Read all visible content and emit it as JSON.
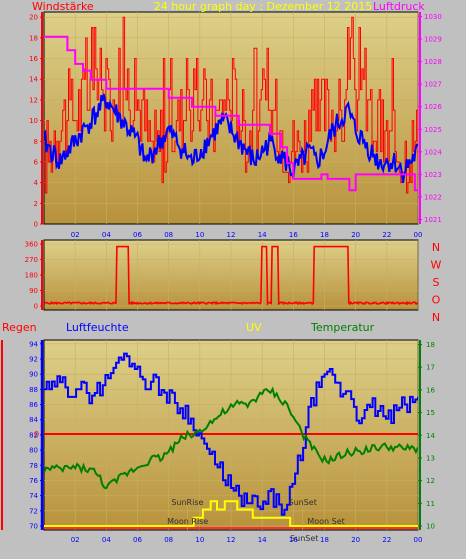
{
  "colors": {
    "wind": "#ff0000",
    "wind_avg": "#0000ff",
    "pressure": "#ff00ff",
    "rain": "#ff0000",
    "humidity": "#0000ff",
    "uv": "#ffff00",
    "temperature": "#008000",
    "plot_bg_top": "#ddd08a",
    "plot_bg_bottom": "#b8923c"
  },
  "chart_data": [
    {
      "type": "line",
      "title": "24 hour graph day : Dezember 12 2015",
      "left_axis_label": "Windstärke",
      "right_axis_label": "Luftdruck",
      "x_tick_labels": [
        "02",
        "04",
        "06",
        "08",
        "10",
        "12",
        "14",
        "16",
        "18",
        "20",
        "22",
        "00"
      ],
      "y_left_ticks": [
        "0",
        "2",
        "4",
        "6",
        "8",
        "10",
        "12",
        "14",
        "16",
        "18",
        "20"
      ],
      "y_right_ticks": [
        "1021",
        "1022",
        "1023",
        "1024",
        "1025",
        "1026",
        "1027",
        "1028",
        "1029",
        "1030"
      ],
      "ylim_left": [
        0,
        20.5
      ],
      "ylim_right": [
        1020.8,
        1030.2
      ],
      "xlim": [
        0,
        24
      ],
      "series": [
        {
          "axis": "left",
          "style": "gust",
          "x": [
            0,
            1,
            2,
            3,
            4,
            5,
            6,
            7,
            8,
            9,
            10,
            11,
            12,
            13,
            14,
            15,
            16,
            17,
            18,
            19,
            20,
            21,
            22,
            23,
            24
          ],
          "values": [
            8,
            12,
            13,
            15,
            13,
            16,
            14,
            9,
            11,
            13,
            14,
            12,
            15,
            11,
            13,
            12,
            9,
            11,
            13,
            12,
            15,
            12,
            10,
            9,
            10
          ]
        },
        {
          "axis": "left",
          "style": "average",
          "x": [
            0,
            1,
            1.5,
            2,
            2.5,
            3,
            3.5,
            4,
            4.5,
            5,
            5.5,
            6,
            6.5,
            7,
            7.5,
            8,
            8.5,
            9,
            9.5,
            10,
            10.5,
            11,
            11.5,
            12,
            12.5,
            13,
            13.5,
            14,
            14.5,
            15,
            15.5,
            16,
            16.5,
            17,
            17.5,
            18,
            18.5,
            19,
            19.5,
            20,
            20.5,
            21,
            21.5,
            22,
            22.5,
            23,
            23.5,
            24
          ],
          "values": [
            8,
            6,
            7,
            8,
            9,
            10,
            11,
            12,
            11,
            10,
            9,
            8,
            6,
            7,
            8,
            9,
            8,
            7,
            6,
            7,
            8,
            9,
            10,
            9,
            8,
            7,
            6,
            7,
            8,
            7,
            6,
            5,
            6,
            7,
            6,
            7,
            9,
            10,
            11,
            9,
            8,
            7,
            6,
            6,
            6,
            5,
            6,
            7
          ]
        },
        {
          "axis": "right",
          "style": "pressure",
          "x": [
            0,
            1.5,
            1.5,
            2,
            2,
            2.5,
            2.5,
            3,
            3,
            4,
            4,
            8,
            8,
            9.5,
            9.5,
            11,
            11,
            12.5,
            12.5,
            14.5,
            14.5,
            15.2,
            15.2,
            15.6,
            15.6,
            16,
            16,
            17.8,
            17.8,
            18.2,
            18.2,
            19.6,
            19.6,
            20,
            20,
            23.8,
            23.8,
            24
          ],
          "values": [
            1029.1,
            1029.1,
            1028.5,
            1028.5,
            1027.9,
            1027.9,
            1027.6,
            1027.6,
            1027.2,
            1027.2,
            1026.8,
            1026.8,
            1026.4,
            1026.4,
            1026.0,
            1026.0,
            1025.6,
            1025.6,
            1025.2,
            1025.2,
            1024.8,
            1024.8,
            1024.2,
            1024.2,
            1023.5,
            1023.5,
            1022.8,
            1022.8,
            1023.0,
            1023.0,
            1022.8,
            1022.8,
            1022.3,
            1022.3,
            1023.0,
            1023.0,
            1022.3,
            1022.3
          ]
        }
      ]
    },
    {
      "type": "line",
      "right_labels": [
        "N",
        "W",
        "S",
        "O",
        "N"
      ],
      "y_ticks": [
        "0",
        "90",
        "180",
        "270",
        "360"
      ],
      "ylim": [
        0,
        360
      ],
      "xlim": [
        0,
        24
      ],
      "series": [
        {
          "x": [
            0,
            1,
            2,
            3,
            4,
            4.6,
            4.65,
            5.4,
            5.45,
            6,
            7,
            8,
            9,
            10,
            11,
            12,
            13,
            13.9,
            13.95,
            14.3,
            14.35,
            14.6,
            14.65,
            15,
            15.05,
            16,
            17,
            17.3,
            17.35,
            18.2,
            18.3,
            19.2,
            19.3,
            19.5,
            19.55,
            20,
            21,
            22,
            23,
            24
          ],
          "values": [
            20,
            18,
            22,
            16,
            20,
            15,
            345,
            345,
            18,
            20,
            15,
            18,
            16,
            20,
            18,
            15,
            20,
            18,
            345,
            345,
            18,
            18,
            345,
            345,
            18,
            15,
            12,
            15,
            345,
            345,
            330,
            330,
            345,
            345,
            15,
            12,
            15,
            10,
            12,
            10
          ]
        }
      ]
    },
    {
      "type": "line",
      "legend": [
        "Regen",
        "Luftfeuchte",
        "UV",
        "Temperatur"
      ],
      "y_left_ticks": [
        "70",
        "72",
        "74",
        "76",
        "78",
        "80",
        "82",
        "84",
        "86",
        "88",
        "90",
        "92",
        "94"
      ],
      "y_right_ticks": [
        "10",
        "11",
        "12",
        "13",
        "14",
        "15",
        "16",
        "17",
        "18"
      ],
      "rain_label": "0",
      "ylim_left": [
        70,
        94.5
      ],
      "ylim_right": [
        10,
        18.2
      ],
      "xlim": [
        0,
        24
      ],
      "annotations": [
        {
          "text": "SunRise",
          "x": 9.2
        },
        {
          "text": "SunSet",
          "x": 16.6
        },
        {
          "text": "Moon Rise",
          "x": 9.3
        },
        {
          "text": "Moon Set",
          "x": 17.4
        },
        {
          "text": "SunSet",
          "x": 16.3
        }
      ],
      "series": [
        {
          "name": "Luftfeuchte",
          "axis": "left",
          "x": [
            0,
            0.5,
            1,
            1.5,
            2,
            2.5,
            3,
            3.5,
            4,
            4.5,
            5,
            5.5,
            6,
            6.5,
            7,
            7.5,
            8,
            8.5,
            9,
            9.5,
            10,
            10.5,
            11,
            11.5,
            12,
            12.5,
            13,
            13.5,
            14,
            14.5,
            15,
            15.5,
            16,
            16.5,
            17,
            17.5,
            18,
            18.5,
            19,
            19.5,
            20,
            20.5,
            21,
            21.5,
            22,
            22.5,
            23,
            23.5,
            24
          ],
          "values": [
            88,
            88,
            89,
            88,
            88,
            88,
            87,
            88,
            89,
            91,
            93,
            92,
            90,
            89,
            89,
            88,
            87,
            86,
            85,
            84,
            82,
            80,
            78,
            77,
            75,
            74,
            73,
            73,
            72,
            74,
            73,
            72,
            76,
            80,
            85,
            88,
            89,
            90,
            87,
            88,
            85,
            84,
            86,
            85,
            84,
            85,
            86,
            86,
            87
          ]
        },
        {
          "name": "Temperatur",
          "axis": "right",
          "x": [
            0,
            1,
            2,
            3,
            3.5,
            4,
            4.5,
            5,
            5.5,
            6,
            6.5,
            7,
            7.5,
            8,
            8.5,
            9,
            9.5,
            10,
            10.5,
            11,
            11.5,
            12,
            12.5,
            13,
            13.5,
            14,
            14.5,
            15,
            15.5,
            16,
            16.5,
            17,
            17.5,
            18,
            18.5,
            19,
            19.5,
            20,
            21,
            22,
            23,
            24
          ],
          "values": [
            12.5,
            12.5,
            12.6,
            12.5,
            12.2,
            11.7,
            11.9,
            12.2,
            12.4,
            12.6,
            12.8,
            13,
            13,
            13.3,
            13.6,
            14,
            14,
            14.2,
            14.5,
            14.7,
            15,
            15.2,
            15.4,
            15.3,
            15.6,
            15.8,
            16,
            15.7,
            15.4,
            14.8,
            14.2,
            13.6,
            13.2,
            12.9,
            12.9,
            13.1,
            13.2,
            13.3,
            13.4,
            13.5,
            13.4,
            13.4
          ]
        },
        {
          "name": "UV",
          "axis": "uv",
          "x": [
            0,
            9.6,
            9.6,
            10.2,
            10.2,
            10.7,
            10.7,
            11.1,
            11.1,
            11.6,
            11.6,
            12.4,
            12.4,
            13.4,
            13.4,
            15.8,
            15.8,
            24
          ],
          "values": [
            0,
            0,
            1,
            1,
            2,
            2,
            3,
            3,
            2,
            2,
            3,
            3,
            2,
            2,
            1,
            1,
            0,
            0
          ]
        }
      ]
    }
  ]
}
